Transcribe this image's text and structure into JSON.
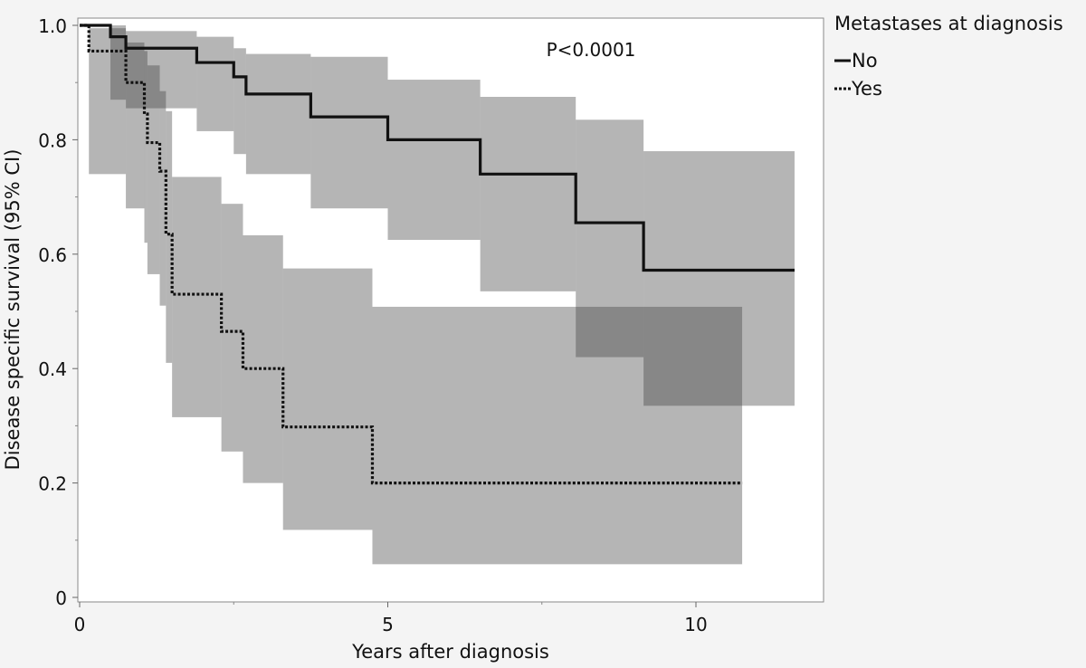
{
  "chart_data": {
    "type": "line",
    "subtype": "kaplan-meier",
    "title": "",
    "xlabel": "Years after diagnosis",
    "ylabel": "Disease specific survival (95% CI)",
    "xlim": [
      0,
      12.2
    ],
    "ylim": [
      0,
      1.02
    ],
    "x_ticks": [
      0,
      5,
      10
    ],
    "x_tick_labels": [
      "0",
      "5",
      "10"
    ],
    "y_ticks": [
      0,
      0.2,
      0.4,
      0.6,
      0.8,
      1.0
    ],
    "y_tick_labels": [
      "0",
      "0.2",
      "0.4",
      "0.6",
      "0.8",
      "1.0"
    ],
    "annotation": "P<0.0001",
    "legend": {
      "title": "Metastases at diagnosis",
      "placement": "right-top"
    },
    "series": [
      {
        "name": "No",
        "line_style": "solid",
        "steps": [
          {
            "x": 0,
            "y": 1.0
          },
          {
            "x": 0.5,
            "y": 0.98
          },
          {
            "x": 0.75,
            "y": 0.96
          },
          {
            "x": 1.9,
            "y": 0.935
          },
          {
            "x": 2.5,
            "y": 0.91
          },
          {
            "x": 2.7,
            "y": 0.88
          },
          {
            "x": 3.75,
            "y": 0.84
          },
          {
            "x": 5.0,
            "y": 0.8
          },
          {
            "x": 6.5,
            "y": 0.74
          },
          {
            "x": 8.05,
            "y": 0.655
          },
          {
            "x": 9.15,
            "y": 0.572
          },
          {
            "x": 11.6,
            "y": 0.572
          }
        ],
        "ci_bands": [
          {
            "x0": 0.0,
            "x1": 0.5,
            "lo": 1.0,
            "hi": 1.0
          },
          {
            "x0": 0.5,
            "x1": 0.75,
            "lo": 0.87,
            "hi": 1.0
          },
          {
            "x0": 0.75,
            "x1": 1.9,
            "lo": 0.855,
            "hi": 0.99
          },
          {
            "x0": 1.9,
            "x1": 2.5,
            "lo": 0.815,
            "hi": 0.98
          },
          {
            "x0": 2.5,
            "x1": 2.7,
            "lo": 0.775,
            "hi": 0.96
          },
          {
            "x0": 2.7,
            "x1": 3.75,
            "lo": 0.74,
            "hi": 0.95
          },
          {
            "x0": 3.75,
            "x1": 5.0,
            "lo": 0.68,
            "hi": 0.945
          },
          {
            "x0": 5.0,
            "x1": 6.5,
            "lo": 0.625,
            "hi": 0.905
          },
          {
            "x0": 6.5,
            "x1": 8.05,
            "lo": 0.535,
            "hi": 0.875
          },
          {
            "x0": 8.05,
            "x1": 9.15,
            "lo": 0.42,
            "hi": 0.835
          },
          {
            "x0": 9.15,
            "x1": 11.6,
            "lo": 0.335,
            "hi": 0.78
          }
        ]
      },
      {
        "name": "Yes",
        "line_style": "dotted",
        "steps": [
          {
            "x": 0,
            "y": 1.0
          },
          {
            "x": 0.15,
            "y": 0.955
          },
          {
            "x": 0.75,
            "y": 0.9
          },
          {
            "x": 1.05,
            "y": 0.845
          },
          {
            "x": 1.1,
            "y": 0.795
          },
          {
            "x": 1.3,
            "y": 0.745
          },
          {
            "x": 1.4,
            "y": 0.635
          },
          {
            "x": 1.5,
            "y": 0.53
          },
          {
            "x": 2.3,
            "y": 0.465
          },
          {
            "x": 2.65,
            "y": 0.4
          },
          {
            "x": 3.3,
            "y": 0.298
          },
          {
            "x": 4.75,
            "y": 0.2
          },
          {
            "x": 10.75,
            "y": 0.2
          }
        ],
        "ci_bands": [
          {
            "x0": 0.15,
            "x1": 0.75,
            "lo": 0.74,
            "hi": 0.995
          },
          {
            "x0": 0.75,
            "x1": 1.05,
            "lo": 0.68,
            "hi": 0.97
          },
          {
            "x0": 1.05,
            "x1": 1.1,
            "lo": 0.62,
            "hi": 0.955
          },
          {
            "x0": 1.1,
            "x1": 1.3,
            "lo": 0.565,
            "hi": 0.93
          },
          {
            "x0": 1.3,
            "x1": 1.4,
            "lo": 0.51,
            "hi": 0.885
          },
          {
            "x0": 1.4,
            "x1": 1.5,
            "lo": 0.41,
            "hi": 0.85
          },
          {
            "x0": 1.5,
            "x1": 2.3,
            "lo": 0.315,
            "hi": 0.735
          },
          {
            "x0": 2.3,
            "x1": 2.65,
            "lo": 0.255,
            "hi": 0.688
          },
          {
            "x0": 2.65,
            "x1": 3.3,
            "lo": 0.2,
            "hi": 0.633
          },
          {
            "x0": 3.3,
            "x1": 4.75,
            "lo": 0.118,
            "hi": 0.575
          },
          {
            "x0": 4.75,
            "x1": 10.75,
            "lo": 0.058,
            "hi": 0.508
          }
        ]
      }
    ],
    "colors": {
      "ci_fill": "#b4b4b4",
      "ci_overlap": "#7a7a7a",
      "line": "#111111",
      "plot_bg": "#ffffff",
      "page_bg": "#f4f4f4"
    }
  }
}
